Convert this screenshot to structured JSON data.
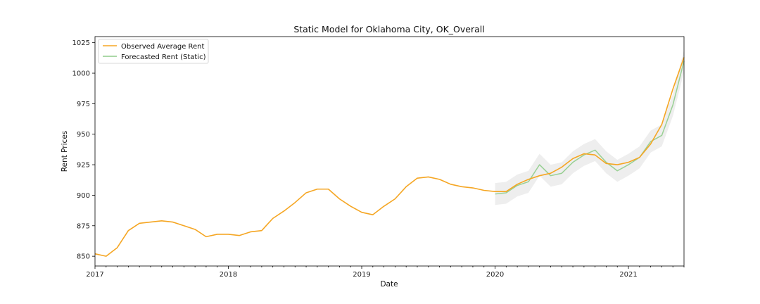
{
  "chart_data": {
    "type": "line",
    "title": "Static Model for Oklahoma City, OK_Overall",
    "xlabel": "Date",
    "ylabel": "Rent Prices",
    "xlim": [
      "2017-01",
      "2021-06"
    ],
    "ylim": [
      842,
      1030
    ],
    "x_ticks": [
      {
        "label": "2017",
        "date": "2017-01"
      },
      {
        "label": "2018",
        "date": "2018-01"
      },
      {
        "label": "2019",
        "date": "2019-01"
      },
      {
        "label": "2020",
        "date": "2020-01"
      },
      {
        "label": "2021",
        "date": "2021-01"
      }
    ],
    "y_ticks": [
      850,
      875,
      900,
      925,
      950,
      975,
      1000,
      1025
    ],
    "grid": false,
    "legend_position": "top-left",
    "series": [
      {
        "name": "Observed Average Rent",
        "color": "#f5a623",
        "x": [
          "2017-01",
          "2017-02",
          "2017-03",
          "2017-04",
          "2017-05",
          "2017-06",
          "2017-07",
          "2017-08",
          "2017-09",
          "2017-10",
          "2017-11",
          "2017-12",
          "2018-01",
          "2018-02",
          "2018-03",
          "2018-04",
          "2018-05",
          "2018-06",
          "2018-07",
          "2018-08",
          "2018-09",
          "2018-10",
          "2018-11",
          "2018-12",
          "2019-01",
          "2019-02",
          "2019-03",
          "2019-04",
          "2019-05",
          "2019-06",
          "2019-07",
          "2019-08",
          "2019-09",
          "2019-10",
          "2019-11",
          "2019-12",
          "2020-01",
          "2020-02",
          "2020-03",
          "2020-04",
          "2020-05",
          "2020-06",
          "2020-07",
          "2020-08",
          "2020-09",
          "2020-10",
          "2020-11",
          "2020-12",
          "2021-01",
          "2021-02",
          "2021-03",
          "2021-04",
          "2021-05",
          "2021-06"
        ],
        "values": [
          852,
          850,
          857,
          871,
          877,
          878,
          879,
          878,
          875,
          872,
          866,
          868,
          868,
          867,
          870,
          871,
          881,
          887,
          894,
          902,
          905,
          905,
          897,
          891,
          886,
          884,
          891,
          897,
          907,
          914,
          915,
          913,
          909,
          907,
          906,
          904,
          903,
          903,
          909,
          913,
          916,
          918,
          923,
          930,
          934,
          933,
          926,
          925,
          927,
          931,
          942,
          958,
          987,
          1013
        ]
      },
      {
        "name": "Forecasted Rent (Static)",
        "color": "#8fcc8a",
        "x": [
          "2020-01",
          "2020-02",
          "2020-03",
          "2020-04",
          "2020-05",
          "2020-06",
          "2020-07",
          "2020-08",
          "2020-09",
          "2020-10",
          "2020-11",
          "2020-12",
          "2021-01",
          "2021-02",
          "2021-03",
          "2021-04",
          "2021-05",
          "2021-06"
        ],
        "values": [
          901,
          902,
          908,
          911,
          925,
          916,
          918,
          927,
          933,
          937,
          927,
          920,
          925,
          931,
          944,
          949,
          974,
          1010
        ],
        "ci_lower": [
          892,
          893,
          899,
          902,
          916,
          907,
          909,
          918,
          924,
          928,
          918,
          911,
          916,
          922,
          935,
          940,
          965,
          1001
        ],
        "ci_upper": [
          910,
          911,
          917,
          920,
          934,
          925,
          927,
          936,
          942,
          946,
          936,
          929,
          934,
          940,
          953,
          958,
          983,
          1019
        ],
        "ci_color": "#e3e3e3"
      }
    ]
  }
}
